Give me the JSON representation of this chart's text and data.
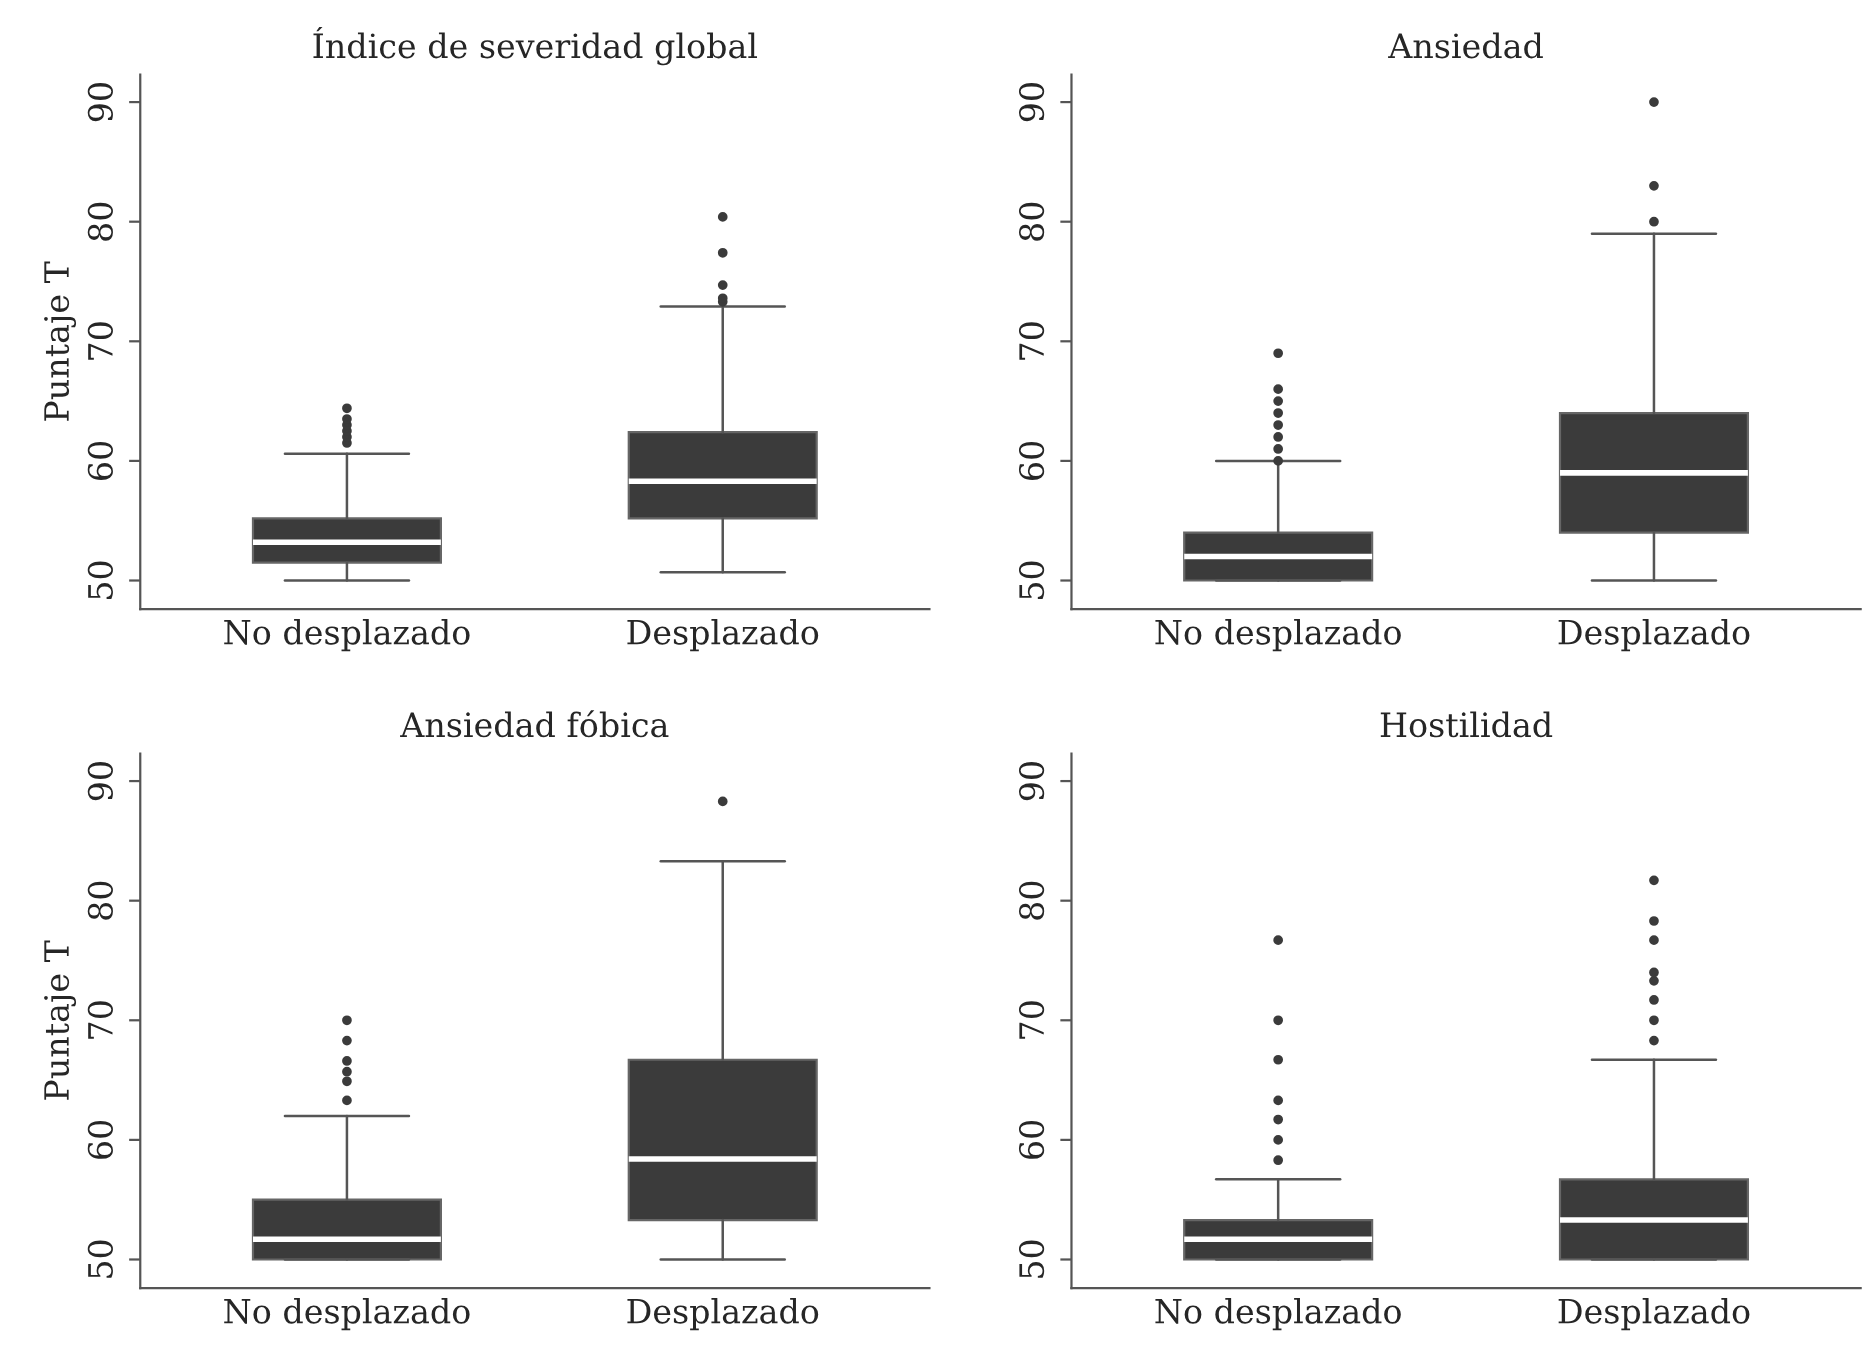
{
  "chart_data": [
    {
      "type": "box",
      "title": "Índice de severidad global",
      "ylabel": "Puntaje T",
      "categories": [
        "No desplazado",
        "Desplazado"
      ],
      "ylim": [
        47.6,
        92.3
      ],
      "yticks": [
        50,
        60,
        70,
        80,
        90
      ],
      "grid": false,
      "color": "#3b3b3b",
      "boxes": [
        {
          "low": 50,
          "q1": 51.5,
          "median": 53.2,
          "q3": 55.2,
          "high": 60.6,
          "outliers": [
            61.5,
            62,
            62.5,
            63,
            63.5,
            64.4
          ]
        },
        {
          "low": 50.7,
          "q1": 55.2,
          "median": 58.3,
          "q3": 62.4,
          "high": 72.9,
          "outliers": [
            73.3,
            73.6,
            74.7,
            77.4,
            80.4
          ]
        }
      ]
    },
    {
      "type": "box",
      "title": "Ansiedad",
      "categories": [
        "No desplazado",
        "Desplazado"
      ],
      "ylim": [
        47.6,
        92.3
      ],
      "yticks": [
        50,
        60,
        70,
        80,
        90
      ],
      "grid": false,
      "color": "#3b3b3b",
      "boxes": [
        {
          "low": 50,
          "q1": 50,
          "median": 52,
          "q3": 54,
          "high": 60,
          "outliers": [
            60,
            61,
            62,
            63,
            64,
            65,
            66,
            69
          ]
        },
        {
          "low": 50,
          "q1": 54,
          "median": 59,
          "q3": 64,
          "high": 79,
          "outliers": [
            80,
            83,
            90
          ]
        }
      ]
    },
    {
      "type": "box",
      "title": "Ansiedad fóbica",
      "ylabel": "Puntaje T",
      "categories": [
        "No desplazado",
        "Desplazado"
      ],
      "ylim": [
        47.6,
        92.3
      ],
      "yticks": [
        50,
        60,
        70,
        80,
        90
      ],
      "grid": false,
      "color": "#3b3b3b",
      "boxes": [
        {
          "low": 50,
          "q1": 50,
          "median": 51.7,
          "q3": 55,
          "high": 62,
          "outliers": [
            63.3,
            64.9,
            65.7,
            66.6,
            68.3,
            70
          ]
        },
        {
          "low": 50,
          "q1": 53.3,
          "median": 58.4,
          "q3": 66.7,
          "high": 83.3,
          "outliers": [
            88.3
          ]
        }
      ]
    },
    {
      "type": "box",
      "title": "Hostilidad",
      "categories": [
        "No desplazado",
        "Desplazado"
      ],
      "ylim": [
        47.6,
        92.3
      ],
      "yticks": [
        50,
        60,
        70,
        80,
        90
      ],
      "grid": false,
      "color": "#3b3b3b",
      "boxes": [
        {
          "low": 50,
          "q1": 50,
          "median": 51.7,
          "q3": 53.3,
          "high": 56.7,
          "outliers": [
            58.3,
            60,
            61.7,
            63.3,
            66.7,
            70,
            76.7
          ]
        },
        {
          "low": 50,
          "q1": 50,
          "median": 53.3,
          "q3": 56.7,
          "high": 66.7,
          "outliers": [
            68.3,
            70,
            71.7,
            73.3,
            74,
            76.7,
            78.3,
            81.7
          ]
        }
      ]
    }
  ]
}
